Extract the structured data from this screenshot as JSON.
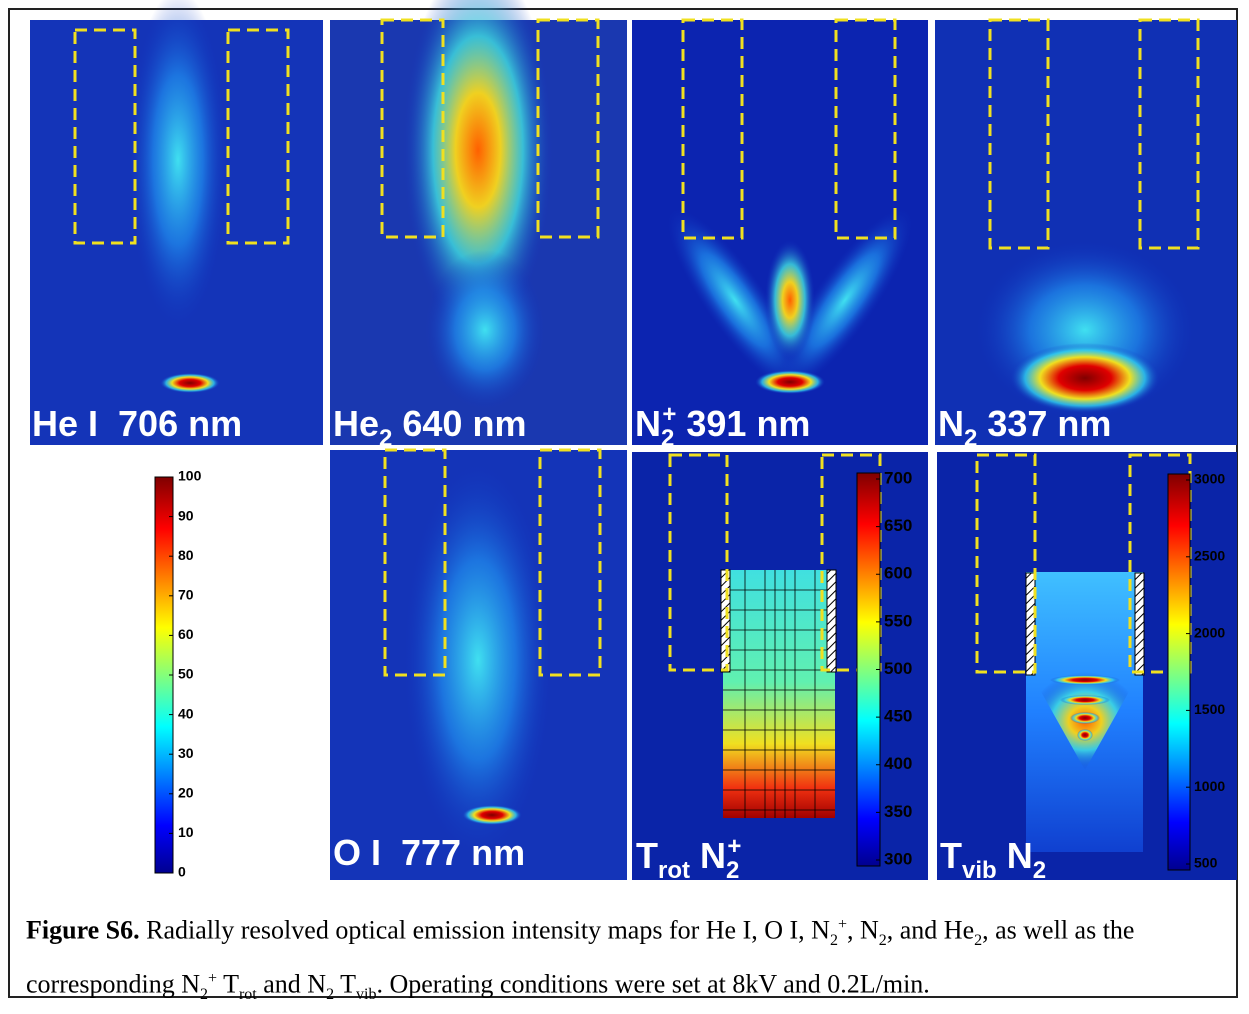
{
  "panels": [
    {
      "label": [
        {
          "text": "He I  706 nm"
        }
      ]
    },
    {
      "label": [
        {
          "text": "He"
        },
        {
          "text": "2",
          "style": "sub"
        },
        {
          "text": " 640 nm"
        }
      ]
    },
    {
      "label": [
        {
          "text": "N"
        },
        {
          "text": "2",
          "style": "sub"
        },
        {
          "text": "+",
          "style": "sup"
        },
        {
          "text": " 391 nm"
        }
      ]
    },
    {
      "label": [
        {
          "text": "N"
        },
        {
          "text": "2",
          "style": "sub"
        },
        {
          "text": " 337 nm"
        }
      ]
    },
    {
      "label": [
        {
          "text": "O I  777 nm"
        }
      ]
    },
    {
      "label": [
        {
          "text": "T"
        },
        {
          "text": "rot",
          "style": "sub"
        },
        {
          "text": " N"
        },
        {
          "text": "2",
          "style": "sub"
        },
        {
          "text": "+",
          "style": "sup"
        }
      ]
    },
    {
      "label": [
        {
          "text": "T"
        },
        {
          "text": "vib",
          "style": "sub"
        },
        {
          "text": " N"
        },
        {
          "text": "2",
          "style": "sub"
        }
      ]
    }
  ],
  "colorbars": [
    {
      "ticks": [
        0,
        10,
        20,
        30,
        40,
        50,
        60,
        70,
        80,
        90,
        100
      ]
    },
    {
      "ticks": [
        300,
        350,
        400,
        450,
        500,
        550,
        600,
        650,
        700
      ]
    },
    {
      "ticks": [
        500,
        1000,
        1500,
        2000,
        2500,
        3000
      ]
    }
  ],
  "caption": [
    {
      "text": "Figure S6.",
      "style": "bold"
    },
    {
      "text": " Radially resolved optical emission intensity maps for He I, O I, N"
    },
    {
      "text": "2",
      "style": "sub"
    },
    {
      "text": "+",
      "style": "sup"
    },
    {
      "text": ", N"
    },
    {
      "text": "2",
      "style": "sub"
    },
    {
      "text": ", and He"
    },
    {
      "text": "2",
      "style": "sub"
    },
    {
      "text": ", as well as the corresponding N"
    },
    {
      "text": "2",
      "style": "sub"
    },
    {
      "text": "+",
      "style": "sup"
    },
    {
      "text": " T"
    },
    {
      "text": "rot",
      "style": "sub"
    },
    {
      "text": " and N"
    },
    {
      "text": "2",
      "style": "sub"
    },
    {
      "text": " T"
    },
    {
      "text": "vib",
      "style": "sub"
    },
    {
      "text": ". Operating conditions were set at 8kV and 0.2L/min."
    }
  ]
}
